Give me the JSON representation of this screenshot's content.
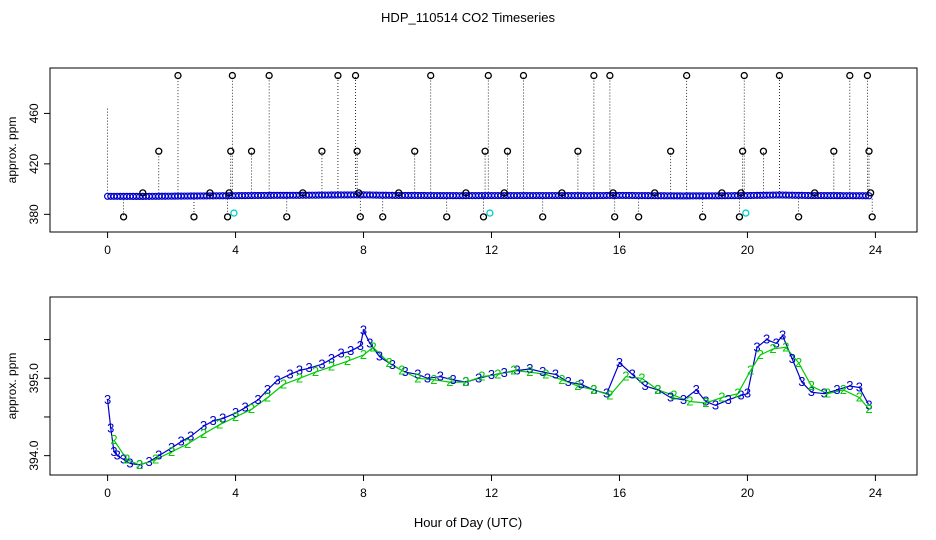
{
  "title": "HDP_110514  CO2 Timeseries",
  "xlabel": "Hour of Day (UTC)",
  "chart_data": [
    {
      "type": "scatter",
      "panel": "top",
      "ylabel": "approx. ppm",
      "xlim": [
        -1.8,
        25.3
      ],
      "ylim": [
        366,
        496
      ],
      "x_ticks": [
        0,
        4,
        8,
        12,
        16,
        20,
        24
      ],
      "y_ticks": [
        380,
        420,
        460
      ],
      "baseline_series": {
        "color": "#0000cc",
        "note_points": [
          [
            0,
            394.3
          ],
          [
            1,
            394.2
          ],
          [
            2,
            394.4
          ],
          [
            3,
            394.6
          ],
          [
            4,
            394.8
          ],
          [
            5,
            395.0
          ],
          [
            6,
            395.1
          ],
          [
            7,
            395.3
          ],
          [
            8,
            395.4
          ],
          [
            9,
            395.0
          ],
          [
            10,
            394.9
          ],
          [
            11,
            394.8
          ],
          [
            12,
            394.9
          ],
          [
            13,
            394.9
          ],
          [
            14,
            394.9
          ],
          [
            15,
            394.8
          ],
          [
            16,
            395.0
          ],
          [
            17,
            394.8
          ],
          [
            18,
            394.6
          ],
          [
            19,
            394.7
          ],
          [
            20,
            394.9
          ],
          [
            21,
            395.3
          ],
          [
            22,
            394.9
          ],
          [
            23,
            394.8
          ],
          [
            23.8,
            394.7
          ]
        ]
      },
      "cyan_points": {
        "color": "#00cccc",
        "x": [
          3.95,
          11.95,
          19.95
        ],
        "y": [
          381,
          381,
          381
        ]
      },
      "spike_points": {
        "color": "#000000",
        "points": [
          [
            0.5,
            378
          ],
          [
            1.1,
            397
          ],
          [
            1.6,
            430
          ],
          [
            2.2,
            490
          ],
          [
            2.7,
            378
          ],
          [
            3.2,
            397
          ],
          [
            3.75,
            378
          ],
          [
            3.8,
            397
          ],
          [
            3.85,
            430
          ],
          [
            3.9,
            490
          ],
          [
            4.5,
            430
          ],
          [
            5.05,
            490
          ],
          [
            5.6,
            378
          ],
          [
            6.1,
            397
          ],
          [
            6.7,
            430
          ],
          [
            7.2,
            490
          ],
          [
            7.75,
            490
          ],
          [
            7.8,
            430
          ],
          [
            7.85,
            397
          ],
          [
            7.9,
            378
          ],
          [
            8.6,
            378
          ],
          [
            9.1,
            397
          ],
          [
            9.6,
            430
          ],
          [
            10.1,
            490
          ],
          [
            10.6,
            378
          ],
          [
            11.2,
            397
          ],
          [
            11.75,
            378
          ],
          [
            11.8,
            430
          ],
          [
            11.9,
            490
          ],
          [
            12.4,
            397
          ],
          [
            12.5,
            430
          ],
          [
            13.0,
            490
          ],
          [
            13.6,
            378
          ],
          [
            14.2,
            397
          ],
          [
            14.7,
            430
          ],
          [
            15.2,
            490
          ],
          [
            15.7,
            490
          ],
          [
            15.8,
            397
          ],
          [
            15.85,
            378
          ],
          [
            16.6,
            378
          ],
          [
            17.1,
            397
          ],
          [
            17.6,
            430
          ],
          [
            18.1,
            490
          ],
          [
            18.6,
            378
          ],
          [
            19.2,
            397
          ],
          [
            19.75,
            378
          ],
          [
            19.8,
            397
          ],
          [
            19.85,
            430
          ],
          [
            19.9,
            490
          ],
          [
            20.5,
            430
          ],
          [
            21.0,
            490
          ],
          [
            21.6,
            378
          ],
          [
            22.1,
            397
          ],
          [
            22.7,
            430
          ],
          [
            23.2,
            490
          ],
          [
            23.75,
            490
          ],
          [
            23.8,
            430
          ],
          [
            23.85,
            397
          ],
          [
            23.9,
            378
          ]
        ]
      }
    },
    {
      "type": "line",
      "panel": "bottom",
      "ylabel": "approx. ppm",
      "xlim": [
        -1.8,
        25.3
      ],
      "ylim": [
        393.75,
        396.05
      ],
      "x_ticks": [
        0,
        4,
        8,
        12,
        16,
        20,
        24
      ],
      "y_ticks": [
        394.0,
        394.5,
        395.0,
        395.5
      ],
      "y_tick_labels": [
        "394.0",
        "",
        "395.0",
        ""
      ],
      "series": [
        {
          "marker": "3",
          "color": "#0000cc",
          "x": [
            0,
            0.1,
            0.2,
            0.3,
            0.5,
            0.7,
            1.0,
            1.3,
            1.6,
            2.0,
            2.3,
            2.6,
            3.0,
            3.3,
            3.6,
            4.0,
            4.3,
            4.7,
            5.0,
            5.3,
            5.7,
            6.0,
            6.3,
            6.7,
            7.0,
            7.3,
            7.6,
            7.9,
            8.0,
            8.2,
            8.5,
            8.9,
            9.3,
            9.7,
            10.0,
            10.4,
            10.8,
            11.2,
            11.6,
            12.0,
            12.4,
            12.8,
            13.2,
            13.6,
            14.0,
            14.4,
            14.8,
            15.2,
            15.6,
            16.0,
            16.4,
            16.8,
            17.2,
            17.6,
            18.0,
            18.4,
            18.7,
            19.0,
            19.4,
            19.8,
            20.0,
            20.3,
            20.6,
            20.9,
            21.1,
            21.4,
            21.7,
            22.0,
            22.4,
            22.8,
            23.2,
            23.5,
            23.8
          ],
          "y": [
            394.72,
            394.35,
            394.05,
            394.0,
            393.95,
            393.9,
            393.88,
            393.92,
            394.0,
            394.1,
            394.18,
            394.25,
            394.38,
            394.45,
            394.48,
            394.55,
            394.62,
            394.72,
            394.85,
            394.97,
            395.05,
            395.1,
            395.13,
            395.18,
            395.25,
            395.32,
            395.35,
            395.42,
            395.62,
            395.45,
            395.28,
            395.17,
            395.08,
            395.05,
            395.0,
            395.02,
            394.98,
            394.95,
            395.0,
            395.04,
            395.07,
            395.1,
            395.12,
            395.08,
            395.05,
            394.95,
            394.92,
            394.85,
            394.8,
            395.2,
            395.05,
            394.9,
            394.85,
            394.75,
            394.72,
            394.85,
            394.7,
            394.65,
            394.72,
            394.78,
            394.8,
            395.4,
            395.5,
            395.45,
            395.55,
            395.25,
            394.95,
            394.82,
            394.8,
            394.85,
            394.9,
            394.88,
            394.65
          ]
        },
        {
          "marker": "2",
          "color": "#00cc00",
          "x": [
            0.2,
            0.6,
            1.0,
            1.5,
            2.0,
            2.5,
            3.0,
            3.5,
            4.0,
            4.5,
            5.0,
            5.5,
            6.0,
            6.5,
            7.0,
            7.5,
            8.0,
            8.3,
            8.8,
            9.2,
            9.7,
            10.2,
            10.7,
            11.2,
            11.7,
            12.2,
            12.7,
            13.2,
            13.7,
            14.2,
            14.7,
            15.2,
            15.7,
            16.2,
            16.7,
            17.2,
            17.7,
            18.2,
            18.7,
            19.2,
            19.7,
            20.1,
            20.4,
            20.8,
            21.2,
            21.6,
            22.0,
            22.5,
            23.0,
            23.5,
            23.8
          ],
          "y": [
            394.2,
            393.95,
            393.88,
            393.95,
            394.05,
            394.15,
            394.28,
            394.4,
            394.5,
            394.6,
            394.75,
            394.92,
            395.0,
            395.08,
            395.15,
            395.22,
            395.3,
            395.4,
            395.2,
            395.1,
            395.0,
            394.98,
            394.95,
            394.95,
            395.02,
            395.05,
            395.1,
            395.08,
            395.05,
            394.98,
            394.9,
            394.85,
            394.78,
            395.02,
            395.0,
            394.85,
            394.78,
            394.7,
            394.68,
            394.75,
            394.8,
            395.1,
            395.3,
            395.38,
            395.4,
            395.2,
            394.9,
            394.8,
            394.85,
            394.75,
            394.6
          ]
        }
      ]
    }
  ]
}
